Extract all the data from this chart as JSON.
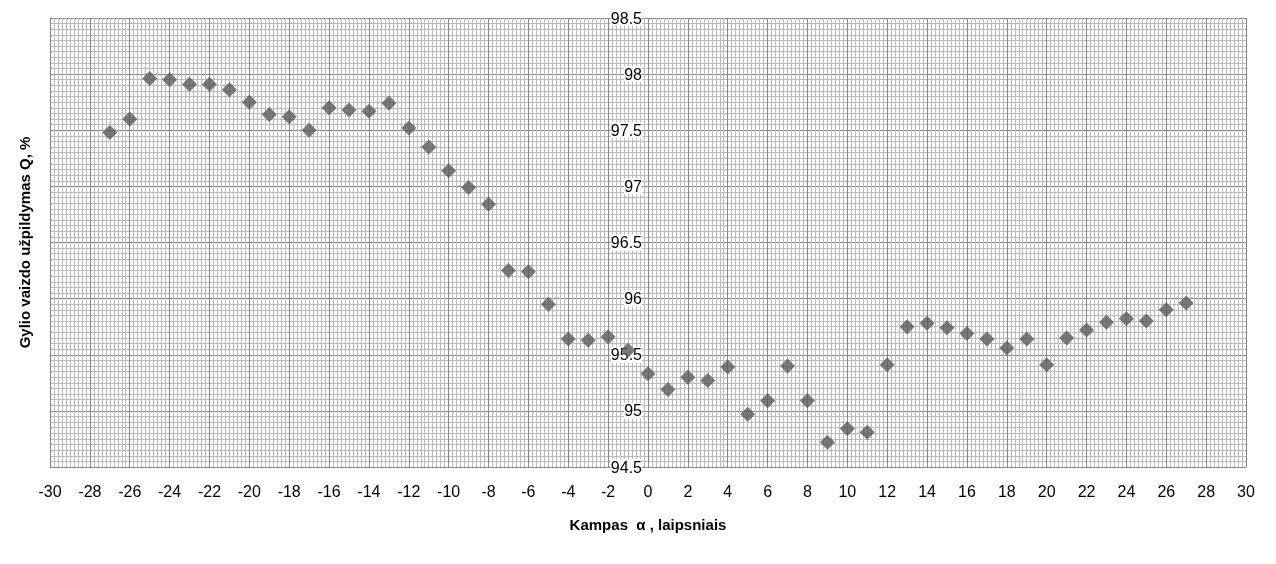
{
  "chart_data": {
    "type": "scatter",
    "xlabel": "Kampas  α , laipsniais",
    "ylabel": "Gylio vaizdo užpildymas Q, %",
    "x": [
      -27,
      -26,
      -25,
      -24,
      -23,
      -22,
      -21,
      -20,
      -19,
      -18,
      -17,
      -16,
      -15,
      -14,
      -13,
      -12,
      -11,
      -10,
      -9,
      -8,
      -7,
      -6,
      -5,
      -4,
      -3,
      -2,
      -1,
      0,
      1,
      2,
      3,
      4,
      5,
      6,
      7,
      8,
      9,
      10,
      11,
      12,
      13,
      14,
      15,
      16,
      17,
      18,
      19,
      20,
      21,
      22,
      23,
      24,
      25,
      26,
      27
    ],
    "values": [
      97.48,
      97.6,
      97.96,
      97.95,
      97.91,
      97.91,
      97.86,
      97.75,
      97.64,
      97.62,
      97.5,
      97.7,
      97.68,
      97.67,
      97.74,
      97.52,
      97.35,
      97.14,
      96.99,
      96.84,
      96.25,
      96.24,
      95.95,
      95.64,
      95.63,
      95.66,
      95.54,
      95.33,
      95.19,
      95.3,
      95.27,
      95.39,
      94.97,
      95.09,
      95.4,
      95.09,
      94.72,
      94.84,
      94.81,
      95.41,
      95.75,
      95.78,
      95.74,
      95.69,
      95.64,
      95.56,
      95.64,
      95.41,
      95.65,
      95.72,
      95.79,
      95.82,
      95.8,
      95.9,
      95.96
    ],
    "color": "#595959",
    "marker": "diamond",
    "grid": true,
    "xlim": [
      -30,
      30
    ],
    "xticks": [
      -30,
      -28,
      -26,
      -24,
      -22,
      -20,
      -18,
      -16,
      -14,
      -12,
      -10,
      -8,
      -6,
      -4,
      -2,
      0,
      2,
      4,
      6,
      8,
      10,
      12,
      14,
      16,
      18,
      20,
      22,
      24,
      26,
      28,
      30
    ],
    "ylim": [
      94.5,
      98.5
    ],
    "yticks": [
      94.5,
      95,
      95.5,
      96,
      96.5,
      97,
      97.5,
      98,
      98.5
    ]
  }
}
